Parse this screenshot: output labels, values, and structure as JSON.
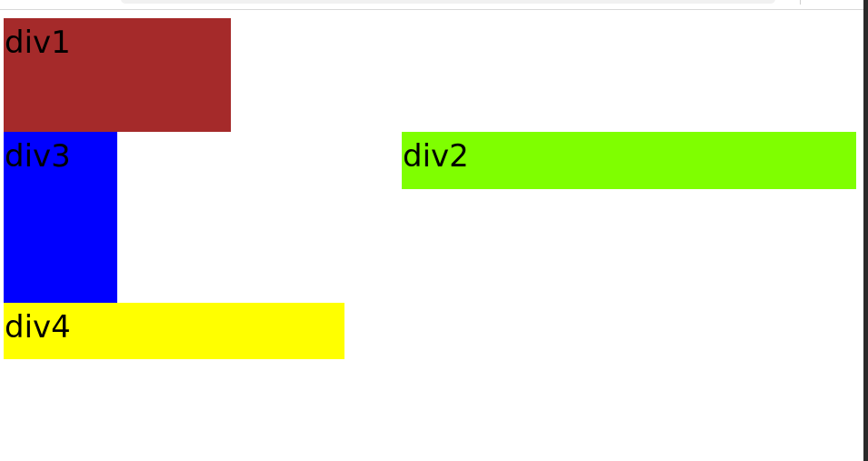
{
  "boxes": {
    "div1": {
      "label": "div1",
      "color": "#a52a2a"
    },
    "div2": {
      "label": "div2",
      "color": "#7fff00"
    },
    "div3": {
      "label": "div3",
      "color": "#0000ff"
    },
    "div4": {
      "label": "div4",
      "color": "#ffff00"
    }
  }
}
